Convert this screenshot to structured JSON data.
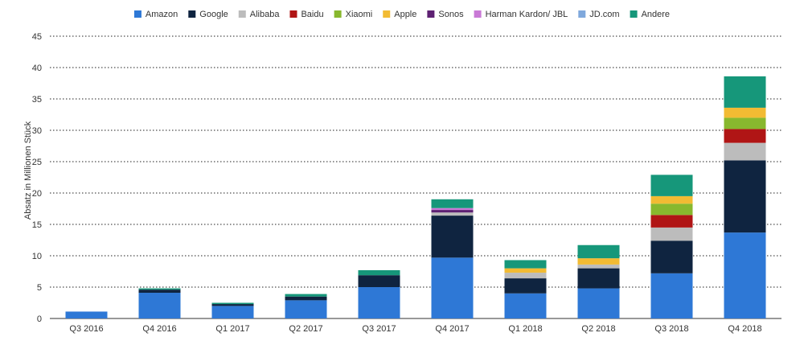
{
  "chart_data": {
    "type": "bar",
    "stacked": true,
    "title": "",
    "xlabel": "",
    "ylabel": "Absatz in Millionen Stück",
    "ylim": [
      0,
      45
    ],
    "yticks": [
      0,
      5,
      10,
      15,
      20,
      25,
      30,
      35,
      40,
      45
    ],
    "grid": true,
    "legend_position": "top",
    "categories": [
      "Q3 2016",
      "Q4 2016",
      "Q1 2017",
      "Q2 2017",
      "Q3 2017",
      "Q4 2017",
      "Q1 2018",
      "Q2 2018",
      "Q3 2018",
      "Q4 2018"
    ],
    "series": [
      {
        "name": "Amazon",
        "color": "#2e78d6",
        "values": [
          1.1,
          4.1,
          2.0,
          2.9,
          5.0,
          9.7,
          4.0,
          4.8,
          7.2,
          13.7
        ]
      },
      {
        "name": "Google",
        "color": "#0f2440",
        "values": [
          0,
          0.5,
          0.3,
          0.6,
          1.9,
          6.7,
          2.4,
          3.2,
          5.2,
          11.5
        ]
      },
      {
        "name": "Alibaba",
        "color": "#bcbcbc",
        "values": [
          0,
          0,
          0,
          0,
          0,
          0.5,
          0.9,
          0.6,
          2.1,
          2.8
        ]
      },
      {
        "name": "Baidu",
        "color": "#b01515",
        "values": [
          0,
          0,
          0,
          0,
          0,
          0,
          0,
          0,
          2.0,
          2.2
        ]
      },
      {
        "name": "Xiaomi",
        "color": "#88b82e",
        "values": [
          0,
          0,
          0,
          0,
          0,
          0,
          0,
          0,
          1.8,
          1.8
        ]
      },
      {
        "name": "Apple",
        "color": "#f2bb33",
        "values": [
          0,
          0,
          0,
          0,
          0,
          0,
          0.7,
          1.0,
          1.2,
          1.6
        ]
      },
      {
        "name": "Sonos",
        "color": "#5e2173",
        "values": [
          0,
          0,
          0,
          0,
          0,
          0.4,
          0,
          0,
          0,
          0
        ]
      },
      {
        "name": "Harman Kardon/ JBL",
        "color": "#c979d6",
        "values": [
          0,
          0,
          0,
          0,
          0,
          0.3,
          0,
          0,
          0,
          0
        ]
      },
      {
        "name": "JD.com",
        "color": "#7fa8dc",
        "values": [
          0,
          0,
          0,
          0,
          0,
          0,
          0,
          0,
          0,
          0
        ]
      },
      {
        "name": "Andere",
        "color": "#16977a",
        "values": [
          0,
          0.2,
          0.2,
          0.4,
          0.8,
          1.4,
          1.3,
          2.1,
          3.4,
          5.0
        ]
      }
    ]
  }
}
